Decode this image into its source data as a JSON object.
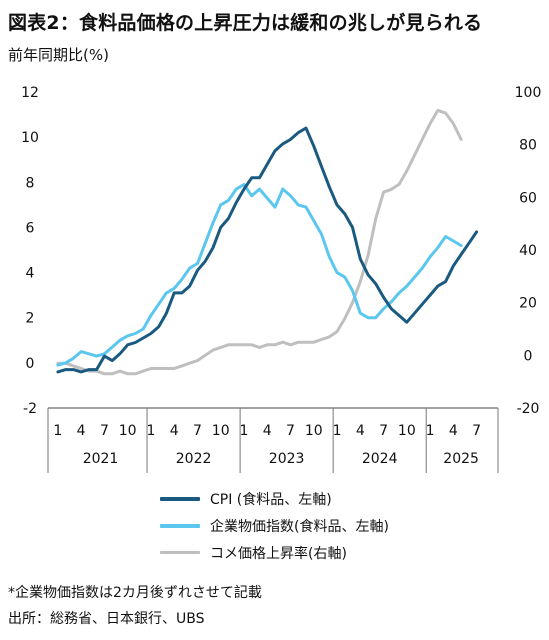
{
  "title": "図表2：食料品価格の上昇圧力は緩和の兆しが見られる",
  "subtitle": "前年同期比(%)",
  "note": "*企業物価指数は2カ月後ずれさせて記載",
  "source": "出所：総務省、日本銀行、UBS",
  "colors": {
    "cpi": "#1b5a80",
    "cgpi": "#5bc6ee",
    "rice": "#bfbfbf"
  },
  "chart_data": {
    "type": "line",
    "x_ticks": [
      "1",
      "4",
      "7",
      "10",
      "1",
      "4",
      "7",
      "10",
      "1",
      "4",
      "7",
      "10",
      "1",
      "4",
      "7",
      "10",
      "1",
      "4",
      "7"
    ],
    "x_groups": [
      "2021",
      "2022",
      "2023",
      "2024",
      "2025"
    ],
    "y_left": {
      "ticks": [
        "-2",
        "0",
        "2",
        "4",
        "6",
        "8",
        "10",
        "12"
      ],
      "ylim": [
        -2,
        12
      ]
    },
    "y_right": {
      "ticks": [
        "-20",
        "0",
        "20",
        "40",
        "60",
        "80",
        "100"
      ],
      "ylim": [
        -20,
        100
      ]
    },
    "series": [
      {
        "name": "CPI (食料品、左軸)",
        "axis": "left",
        "start": "2021-01",
        "values": [
          -0.4,
          -0.3,
          -0.3,
          -0.4,
          -0.3,
          -0.3,
          0.3,
          0.1,
          0.4,
          0.8,
          0.9,
          1.1,
          1.3,
          1.6,
          2.2,
          3.1,
          3.1,
          3.4,
          4.1,
          4.5,
          5.1,
          6.0,
          6.4,
          7.1,
          7.7,
          8.2,
          8.2,
          8.8,
          9.4,
          9.7,
          9.9,
          10.2,
          10.4,
          9.6,
          8.7,
          7.8,
          7.0,
          6.6,
          6.0,
          4.6,
          3.9,
          3.5,
          2.9,
          2.4,
          2.1,
          1.8,
          2.2,
          2.6,
          3.0,
          3.4,
          3.6,
          4.3,
          4.8,
          5.3,
          5.8
        ]
      },
      {
        "name": "企業物価指数(食料品、左軸)",
        "axis": "left",
        "start": "2021-01",
        "values": [
          -0.1,
          0,
          0.2,
          0.5,
          0.4,
          0.3,
          0.4,
          0.7,
          1.0,
          1.2,
          1.3,
          1.5,
          2.1,
          2.6,
          3.1,
          3.3,
          3.7,
          4.2,
          4.4,
          5.3,
          6.2,
          7.0,
          7.2,
          7.7,
          7.9,
          7.4,
          7.7,
          7.3,
          6.9,
          7.7,
          7.4,
          7.0,
          6.9,
          6.3,
          5.7,
          4.7,
          4.0,
          3.8,
          3.2,
          2.2,
          2.0,
          2.0,
          2.4,
          2.7,
          3.1,
          3.4,
          3.8,
          4.2,
          4.7,
          5.1,
          5.6,
          5.4,
          5.2
        ]
      },
      {
        "name": "コメ価格上昇率(右軸)",
        "axis": "right",
        "start": "2021-01",
        "values": [
          -3,
          -3,
          -4,
          -5,
          -6,
          -6,
          -7,
          -7,
          -6,
          -7,
          -7,
          -6,
          -5,
          -5,
          -5,
          -5,
          -4,
          -3,
          -2,
          0,
          2,
          3,
          4,
          4,
          4,
          4,
          3,
          4,
          4,
          5,
          4,
          5,
          5,
          5,
          6,
          7,
          9,
          14,
          20,
          28,
          38,
          52,
          62,
          63,
          65,
          70,
          76,
          82,
          88,
          93,
          92,
          88,
          82
        ]
      }
    ]
  }
}
